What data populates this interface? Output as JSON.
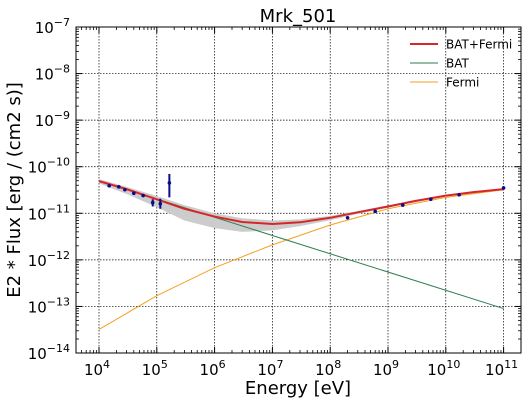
{
  "chart_data": {
    "type": "line",
    "title": "Mrk_501",
    "xlabel": "Energy [eV]",
    "ylabel": "E2 * Flux [erg / (cm2 s)]",
    "xscale": "log",
    "yscale": "log",
    "xlim": [
      4000.0,
      200000000000.0
    ],
    "ylim": [
      1e-14,
      1e-07
    ],
    "grid": true,
    "legend_position": "top-right",
    "x_ticks": [
      {
        "value": 10000.0,
        "base": "10",
        "exp": "4"
      },
      {
        "value": 100000.0,
        "base": "10",
        "exp": "5"
      },
      {
        "value": 1000000.0,
        "base": "10",
        "exp": "6"
      },
      {
        "value": 10000000.0,
        "base": "10",
        "exp": "7"
      },
      {
        "value": 100000000.0,
        "base": "10",
        "exp": "8"
      },
      {
        "value": 1000000000.0,
        "base": "10",
        "exp": "9"
      },
      {
        "value": 10000000000.0,
        "base": "10",
        "exp": "10"
      },
      {
        "value": 100000000000.0,
        "base": "10",
        "exp": "11"
      }
    ],
    "y_ticks": [
      {
        "value": 1e-14,
        "base": "10",
        "exp": "−14"
      },
      {
        "value": 1e-13,
        "base": "10",
        "exp": "−13"
      },
      {
        "value": 1e-12,
        "base": "10",
        "exp": "−12"
      },
      {
        "value": 1e-11,
        "base": "10",
        "exp": "−11"
      },
      {
        "value": 1e-10,
        "base": "10",
        "exp": "−10"
      },
      {
        "value": 1e-09,
        "base": "10",
        "exp": "−9"
      },
      {
        "value": 1e-08,
        "base": "10",
        "exp": "−8"
      },
      {
        "value": 1e-07,
        "base": "10",
        "exp": "−7"
      }
    ],
    "series": [
      {
        "name": "BAT+Fermi",
        "color": "#d62728",
        "width": 2.0,
        "x": [
          10000.0,
          30000.0,
          100000.0,
          300000.0,
          1000000.0,
          3000000.0,
          10000000.0,
          30000000.0,
          100000000.0,
          300000000.0,
          1000000000.0,
          3000000000.0,
          10000000000.0,
          30000000000.0,
          100000000000.0
        ],
        "y": [
          4.9e-11,
          3.3e-11,
          2e-11,
          1.25e-11,
          8.5e-12,
          6.5e-12,
          5.9e-12,
          6.4e-12,
          8e-12,
          1.05e-11,
          1.4e-11,
          1.85e-11,
          2.4e-11,
          2.85e-11,
          3.3e-11
        ]
      },
      {
        "name": "BAT",
        "color": "#2e7d4f",
        "width": 1.0,
        "x": [
          10000.0,
          100000000000.0
        ],
        "y": [
          5e-11,
          9e-14
        ]
      },
      {
        "name": "Fermi",
        "color": "#f5a020",
        "width": 1.0,
        "x": [
          10000.0,
          100000.0,
          1000000.0,
          10000000.0,
          100000000.0,
          1000000000.0,
          10000000000.0,
          100000000000.0
        ],
        "y": [
          3.2e-14,
          1.7e-13,
          6.8e-13,
          2.1e-12,
          5.6e-12,
          1.25e-11,
          2.2e-11,
          3.2e-11
        ]
      }
    ],
    "confidence_band": {
      "color": "#cccccc",
      "x": [
        10000.0,
        30000.0,
        100000.0,
        300000.0,
        1000000.0,
        3000000.0,
        10000000.0,
        30000000.0,
        100000000.0,
        300000000.0,
        1000000000.0,
        10000000000.0,
        100000000000.0
      ],
      "upper": [
        5.4e-11,
        3.7e-11,
        2.35e-11,
        1.5e-11,
        1e-11,
        7.8e-12,
        7e-12,
        7.4e-12,
        8.8e-12,
        1.12e-11,
        1.48e-11,
        2.5e-11,
        3.45e-11
      ],
      "lower": [
        4.4e-11,
        2.6e-11,
        1.35e-11,
        7e-12,
        4.8e-12,
        4e-12,
        4.3e-12,
        5.3e-12,
        7.1e-12,
        9.7e-12,
        1.32e-11,
        2.3e-11,
        3.15e-11
      ]
    },
    "data_points": [
      {
        "x": 15000.0,
        "y": 3.9e-11
      },
      {
        "x": 22000.0,
        "y": 3.7e-11
      },
      {
        "x": 28000.0,
        "y": 3.2e-11
      },
      {
        "x": 40000.0,
        "y": 2.7e-11
      },
      {
        "x": 58000.0,
        "y": 2.4e-11
      },
      {
        "x": 85000.0,
        "y": 1.7e-11,
        "ylo": 1.4e-11,
        "yhi": 2e-11
      },
      {
        "x": 115000.0,
        "y": 1.6e-11,
        "ylo": 1.25e-11,
        "yhi": 2.05e-11
      },
      {
        "x": 165000.0,
        "y": 4.5e-11,
        "ylo": 2.2e-11,
        "yhi": 7e-11
      },
      {
        "x": 200000000.0,
        "y": 8e-12
      },
      {
        "x": 600000000.0,
        "y": 1.1e-11
      },
      {
        "x": 1800000000.0,
        "y": 1.5e-11
      },
      {
        "x": 5500000000.0,
        "y": 2e-11
      },
      {
        "x": 17000000000.0,
        "y": 2.5e-11
      },
      {
        "x": 100000000000.0,
        "y": 3.5e-11
      }
    ],
    "point_color": "#0a0a8c"
  }
}
